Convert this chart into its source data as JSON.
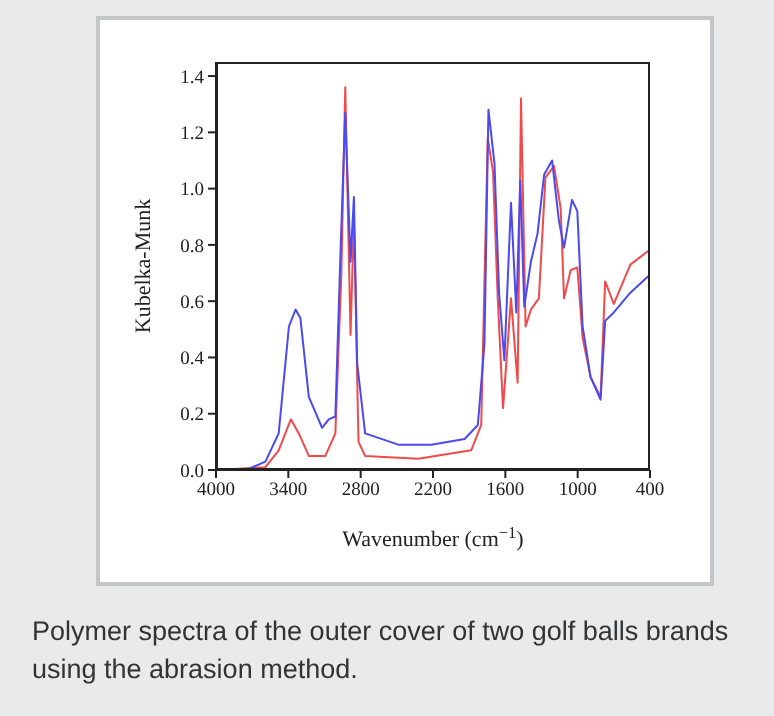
{
  "chart_data": {
    "type": "line",
    "xlabel": "Wavenumber (cm$^{−1}$)",
    "ylabel": "Kubelka-Munk",
    "xlim": [
      4000,
      400
    ],
    "xticks": [
      4000,
      3400,
      2800,
      2200,
      1600,
      1000,
      400
    ],
    "ylim": [
      0,
      1.45
    ],
    "yticks": [
      {
        "value": 0,
        "label": "0.0"
      },
      {
        "value": 0.2,
        "label": "0.2"
      },
      {
        "value": 0.4,
        "label": "0.4"
      },
      {
        "value": 0.6,
        "label": "0.6"
      },
      {
        "value": 0.8,
        "label": "0.8"
      },
      {
        "value": 1,
        "label": "1.0"
      },
      {
        "value": 1.2,
        "label": "1.2"
      },
      {
        "value": 1.4,
        "label": "1.4"
      }
    ],
    "grid": false,
    "marker": "none",
    "line_style": "solid",
    "series": [
      {
        "color": "#4a4af0",
        "x": [
          4000,
          3750,
          3590,
          3480,
          3395,
          3340,
          3300,
          3230,
          3120,
          3065,
          3010,
          2966,
          2928,
          2884,
          2856,
          2829,
          2763,
          2488,
          2213,
          1938,
          1828,
          1773,
          1740,
          1690,
          1652,
          1608,
          1553,
          1509,
          1476,
          1443,
          1388,
          1333,
          1278,
          1212,
          1157,
          1113,
          1047,
          1003,
          959,
          893,
          810,
          772,
          700,
          563,
          410
        ],
        "values": [
          0,
          0,
          0.03,
          0.13,
          0.51,
          0.57,
          0.54,
          0.26,
          0.15,
          0.18,
          0.19,
          0.79,
          1.27,
          0.74,
          0.97,
          0.38,
          0.13,
          0.09,
          0.09,
          0.11,
          0.16,
          0.45,
          1.28,
          1.09,
          0.63,
          0.39,
          0.95,
          0.56,
          1.03,
          0.58,
          0.74,
          0.84,
          1.05,
          1.1,
          0.89,
          0.79,
          0.96,
          0.92,
          0.51,
          0.33,
          0.25,
          0.53,
          0.56,
          0.63,
          0.69
        ]
      },
      {
        "color": "#f04a4a",
        "x": [
          4000,
          3590,
          3480,
          3379,
          3313,
          3230,
          3093,
          3010,
          2960,
          2928,
          2884,
          2856,
          2818,
          2763,
          2323,
          1883,
          1800,
          1746,
          1702,
          1663,
          1619,
          1553,
          1498,
          1470,
          1432,
          1388,
          1322,
          1267,
          1196,
          1141,
          1113,
          1058,
          1003,
          959,
          893,
          810,
          772,
          700,
          563,
          410
        ],
        "values": [
          0,
          0.01,
          0.07,
          0.18,
          0.13,
          0.05,
          0.05,
          0.13,
          0.7,
          1.36,
          0.48,
          0.9,
          0.1,
          0.05,
          0.04,
          0.07,
          0.16,
          1.18,
          1.06,
          0.61,
          0.22,
          0.61,
          0.31,
          1.32,
          0.51,
          0.57,
          0.61,
          1.04,
          1.08,
          0.93,
          0.61,
          0.71,
          0.72,
          0.47,
          0.33,
          0.26,
          0.67,
          0.59,
          0.73,
          0.78
        ]
      }
    ],
    "annotations": [
      "Polymer spectra of the outer cover of two golf balls brands using the abrasion method."
    ]
  }
}
